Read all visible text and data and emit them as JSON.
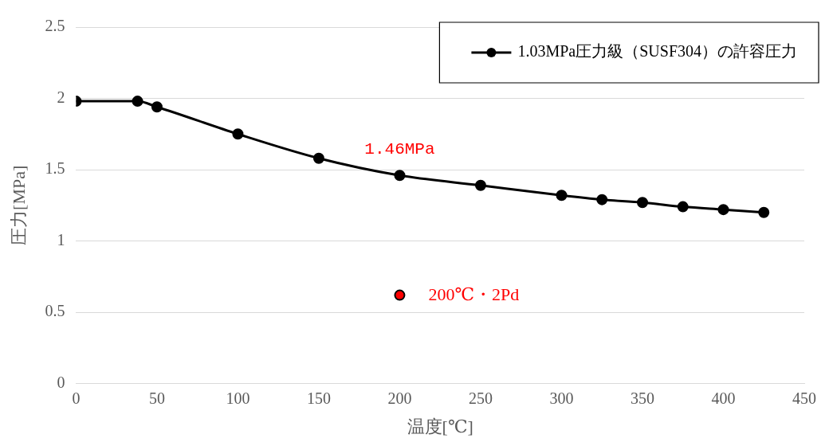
{
  "chart_data": {
    "type": "line",
    "xlabel": "温度[℃]",
    "ylabel": "圧力[MPa]",
    "xlim": [
      0,
      450
    ],
    "xticks": [
      0,
      50,
      100,
      150,
      200,
      250,
      300,
      350,
      400,
      450
    ],
    "ylim": [
      0,
      2.5
    ],
    "yticks": [
      0,
      0.5,
      1,
      1.5,
      2,
      2.5
    ],
    "grid": "y",
    "legend": "top right",
    "marker": "circle",
    "line_style": "solid",
    "series": [
      {
        "name": "1.03MPa圧力級（SUSF304）の許容圧力",
        "color": "#000000",
        "x": [
          0,
          38,
          50,
          100,
          150,
          200,
          250,
          300,
          325,
          350,
          375,
          400,
          425
        ],
        "values": [
          1.98,
          1.98,
          1.94,
          1.75,
          1.58,
          1.46,
          1.39,
          1.32,
          1.29,
          1.27,
          1.24,
          1.22,
          1.2
        ]
      },
      {
        "type": "scatter",
        "color": "#ff0000",
        "x": [
          200
        ],
        "values": [
          0.62
        ]
      }
    ],
    "annotations": [
      {
        "text": "1.46MPa",
        "x": 200,
        "y": 1.46
      },
      {
        "text": "200℃・2Pd",
        "x": 200,
        "y": 0.62
      }
    ]
  }
}
